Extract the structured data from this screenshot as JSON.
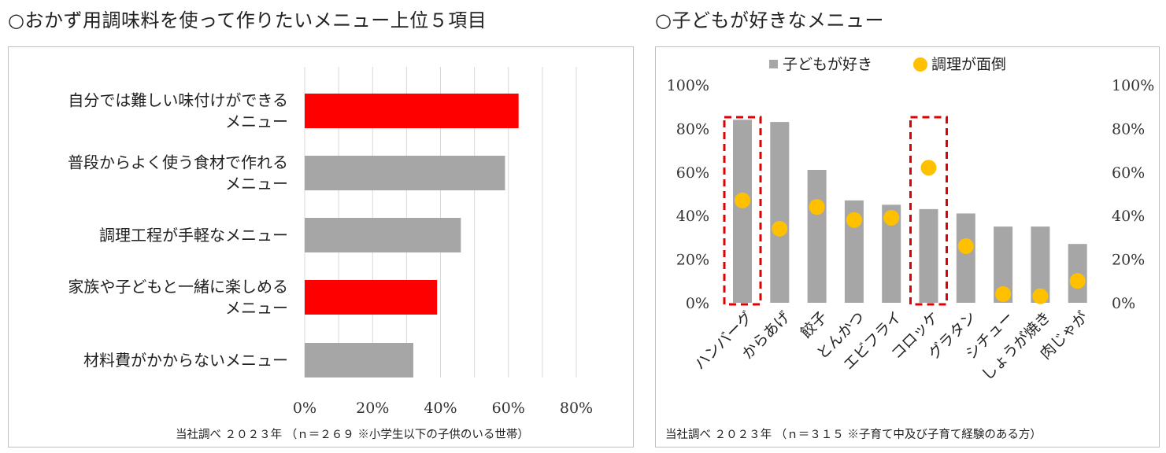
{
  "left": {
    "title": "○おかず用調味料を使って作りたいメニュー上位５項目",
    "source": "当社調べ ２０２３年 （ｎ＝２６９ ※小学生以下の子供のいる世帯）",
    "chart_data": {
      "type": "bar",
      "orientation": "horizontal",
      "categories": [
        [
          "自分では難しい味付けができる",
          "メニュー"
        ],
        [
          "普段からよく使う食材で作れる",
          "メニュー"
        ],
        [
          "調理工程が手軽なメニュー"
        ],
        [
          "家族や子どもと一緒に楽しめる",
          "メニュー"
        ],
        [
          "材料費がかからないメニュー"
        ]
      ],
      "values": [
        63,
        59,
        46,
        39,
        32
      ],
      "highlight": [
        true,
        false,
        false,
        true,
        false
      ],
      "xlim": [
        0,
        80
      ],
      "xticks": [
        "0%",
        "20%",
        "40%",
        "60%",
        "80%"
      ],
      "colors": {
        "highlight": "#ff0000",
        "normal": "#a6a6a6",
        "grid": "#d9d9d9"
      }
    }
  },
  "right": {
    "title": "○子どもが好きなメニュー",
    "source": "当社調べ ２０２３年 （ｎ＝３１５ ※子育て中及び子育て経験のある方）",
    "chart_data": {
      "type": "bar",
      "categories": [
        "ハンバーグ",
        "からあげ",
        "餃子",
        "とんかつ",
        "エビフライ",
        "コロッケ",
        "グラタン",
        "シチュー",
        "しょうが焼き",
        "肉じゃが"
      ],
      "series": [
        {
          "name": "子どもが好き",
          "type": "bar",
          "values": [
            84,
            83,
            61,
            47,
            45,
            43,
            41,
            35,
            35,
            27
          ]
        },
        {
          "name": "調理が面倒",
          "type": "scatter",
          "values": [
            47,
            34,
            44,
            38,
            39,
            62,
            26,
            4,
            3,
            10
          ]
        }
      ],
      "ylim": [
        0,
        100
      ],
      "yticks": [
        "0%",
        "20%",
        "40%",
        "60%",
        "80%",
        "100%"
      ],
      "highlight": [
        "ハンバーグ",
        "コロッケ"
      ],
      "colors": {
        "bar": "#a6a6a6",
        "dot": "#ffc000",
        "highlight_box": "#e00000"
      }
    }
  }
}
